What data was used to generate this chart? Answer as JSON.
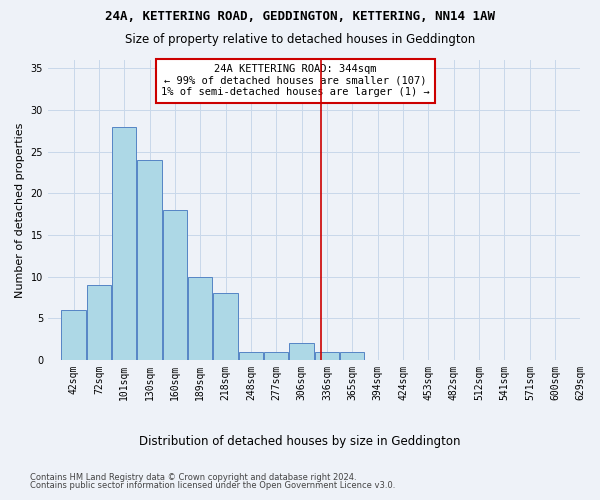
{
  "title": "24A, KETTERING ROAD, GEDDINGTON, KETTERING, NN14 1AW",
  "subtitle": "Size of property relative to detached houses in Geddington",
  "xlabel": "Distribution of detached houses by size in Geddington",
  "ylabel": "Number of detached properties",
  "bins": [
    42,
    72,
    101,
    130,
    160,
    189,
    218,
    248,
    277,
    306,
    336,
    365,
    394,
    424,
    453,
    482,
    512,
    541,
    571,
    600,
    629
  ],
  "bar_heights": [
    6,
    9,
    28,
    24,
    18,
    10,
    8,
    1,
    1,
    2,
    1,
    1,
    0,
    0,
    0,
    0,
    0,
    0,
    0,
    0
  ],
  "bar_color": "#add8e6",
  "bar_edge_color": "#5585c5",
  "grid_color": "#c8d8ea",
  "vline_x": 344,
  "vline_color": "#cc0000",
  "annotation_text": "24A KETTERING ROAD: 344sqm\n← 99% of detached houses are smaller (107)\n1% of semi-detached houses are larger (1) →",
  "annotation_box_color": "#ffffff",
  "annotation_box_edge": "#cc0000",
  "ylim": [
    0,
    36
  ],
  "yticks": [
    0,
    5,
    10,
    15,
    20,
    25,
    30,
    35
  ],
  "footer1": "Contains HM Land Registry data © Crown copyright and database right 2024.",
  "footer2": "Contains public sector information licensed under the Open Government Licence v3.0.",
  "bg_color": "#eef2f8"
}
